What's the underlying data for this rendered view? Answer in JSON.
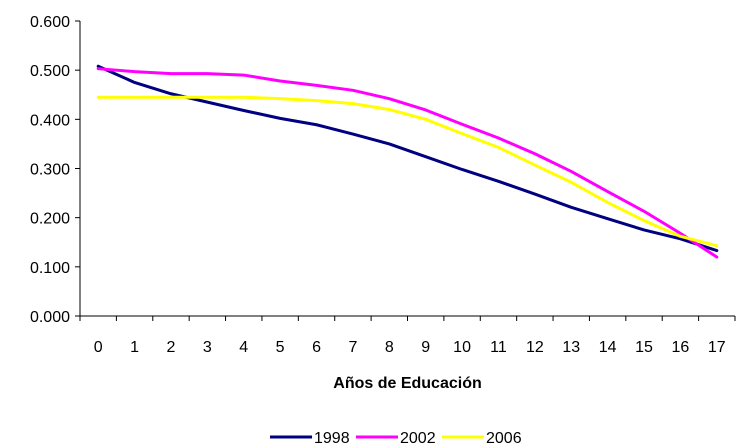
{
  "chart_data": {
    "type": "line",
    "title": "",
    "xlabel": "Años de Educación",
    "ylabel": "",
    "categories": [
      "0",
      "1",
      "2",
      "3",
      "4",
      "5",
      "6",
      "7",
      "8",
      "9",
      "10",
      "11",
      "12",
      "13",
      "14",
      "15",
      "16",
      "17"
    ],
    "ylim": [
      0,
      0.6
    ],
    "yticks": [
      "0.000",
      "0.100",
      "0.200",
      "0.300",
      "0.400",
      "0.500",
      "0.600"
    ],
    "grid": false,
    "legend_position": "bottom",
    "series": [
      {
        "name": "1998",
        "color": "#000080",
        "values": [
          0.508,
          0.475,
          0.452,
          0.435,
          0.418,
          0.402,
          0.389,
          0.37,
          0.35,
          0.324,
          0.298,
          0.274,
          0.248,
          0.221,
          0.198,
          0.175,
          0.157,
          0.133
        ]
      },
      {
        "name": "2002",
        "color": "#FF00FF",
        "values": [
          0.503,
          0.497,
          0.493,
          0.493,
          0.49,
          0.478,
          0.469,
          0.459,
          0.442,
          0.419,
          0.39,
          0.362,
          0.33,
          0.294,
          0.253,
          0.213,
          0.168,
          0.12
        ]
      },
      {
        "name": "2006",
        "color": "#FFFF00",
        "values": [
          0.445,
          0.445,
          0.445,
          0.445,
          0.445,
          0.442,
          0.438,
          0.432,
          0.42,
          0.4,
          0.371,
          0.343,
          0.307,
          0.272,
          0.231,
          0.194,
          0.162,
          0.143
        ]
      }
    ]
  }
}
